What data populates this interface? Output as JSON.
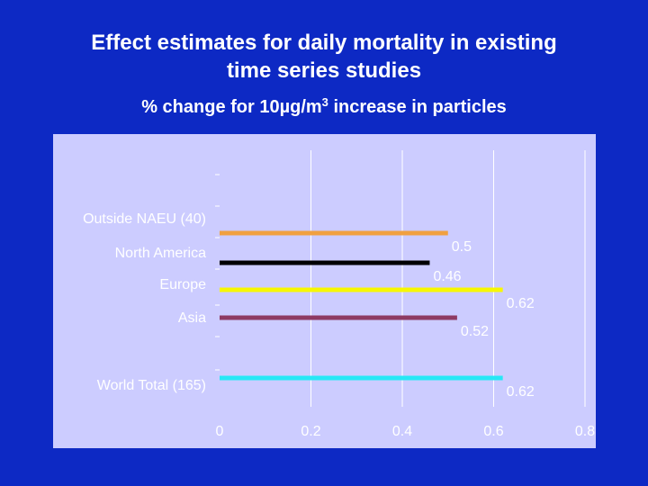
{
  "title_line1": "Effect estimates for daily mortality in existing",
  "title_line2": "time series studies",
  "subtitle_main": "% change for 10µg/m",
  "subtitle_sup": "3",
  "subtitle_tail": " increase in particles",
  "colors": {
    "background": "#0d29c4",
    "plot_area": "#ccccff",
    "gridline": "#ffffff",
    "text": "#ffffff"
  },
  "chart_data": {
    "type": "bar",
    "orientation": "horizontal",
    "categories": [
      "Outside NAEU (40)",
      "North America",
      "Europe",
      "Asia",
      "World Total (165)"
    ],
    "values": [
      0.5,
      0.46,
      0.62,
      0.52,
      0.62
    ],
    "value_labels": [
      "0.5",
      "0.46",
      "0.62",
      "0.52",
      "0.62"
    ],
    "bar_colors": [
      "#f0a040",
      "#000000",
      "#f7f700",
      "#8e3a63",
      "#27e8f6"
    ],
    "xlim": [
      0,
      0.8
    ],
    "x_ticks": [
      0,
      0.2,
      0.4,
      0.6,
      0.8
    ],
    "x_tick_labels": [
      "0",
      "0.2",
      "0.4",
      "0.6",
      "0.8"
    ],
    "grid": "vertical",
    "legend": "none"
  }
}
